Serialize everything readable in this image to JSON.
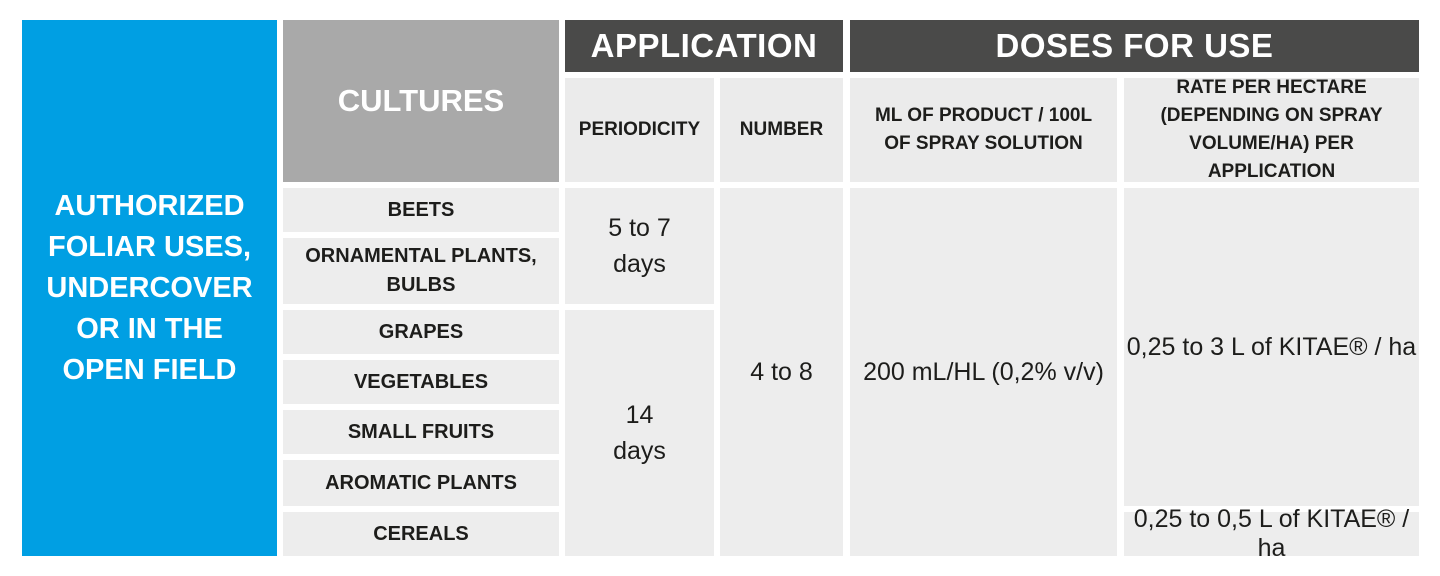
{
  "side_label": "AUTHORIZED\nFOLIAR USES,\nUNDERCOVER\nOR IN THE\nOPEN FIELD",
  "headers": {
    "cultures": "CULTURES",
    "application": "APPLICATION",
    "doses": "DOSES FOR USE",
    "periodicity": "PERIODICITY",
    "number": "NUMBER",
    "ml_product": "ML OF PRODUCT / 100L\nOF SPRAY SOLUTION",
    "rate": "RATE PER HECTARE\n(DEPENDING ON SPRAY\nVOLUME/HA) PER APPLICATION"
  },
  "cultures": [
    "BEETS",
    "ORNAMENTAL PLANTS,\nBULBS",
    "GRAPES",
    "VEGETABLES",
    "SMALL FRUITS",
    "AROMATIC PLANTS",
    "CEREALS"
  ],
  "periodicity": [
    "5 to 7\ndays",
    "14\ndays"
  ],
  "number": "4 to 8",
  "ml_product": "200 mL/HL (0,2% v/v)",
  "rate": [
    "0,25 to 3 L of KITAE® / ha",
    "0,25 to 0,5 L of KITAE® / ha"
  ]
}
